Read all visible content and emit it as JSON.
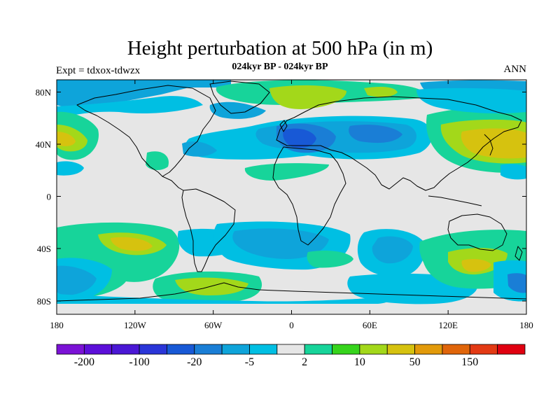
{
  "title": "Height perturbation at 500 hPa (in m)",
  "subtitle": "024kyr BP - 024kyr BP",
  "experiment_label": "Expt = tdxox-tdwzx",
  "period_label": "ANN",
  "map": {
    "lon_ticks": [
      "180",
      "120W",
      "60W",
      "0",
      "60E",
      "120E",
      "180"
    ],
    "lat_ticks": [
      "80N",
      "40N",
      "0",
      "40S",
      "80S"
    ],
    "projection": "cylindrical-equidistant",
    "missing_fill": "#e6e6e6"
  },
  "colorbar": {
    "colors": [
      "#7b12d6",
      "#5c0fd9",
      "#4a17d5",
      "#2a35d8",
      "#1859d6",
      "#1a7ed6",
      "#0ea4da",
      "#00bfe3",
      "#e6e6e6",
      "#17d49a",
      "#36d41c",
      "#a3d81a",
      "#d6c20f",
      "#e29a0a",
      "#e0650a",
      "#e33a14",
      "#e00010"
    ],
    "labels": [
      "-200",
      "-100",
      "-20",
      "-5",
      "2",
      "10",
      "50",
      "150"
    ]
  }
}
